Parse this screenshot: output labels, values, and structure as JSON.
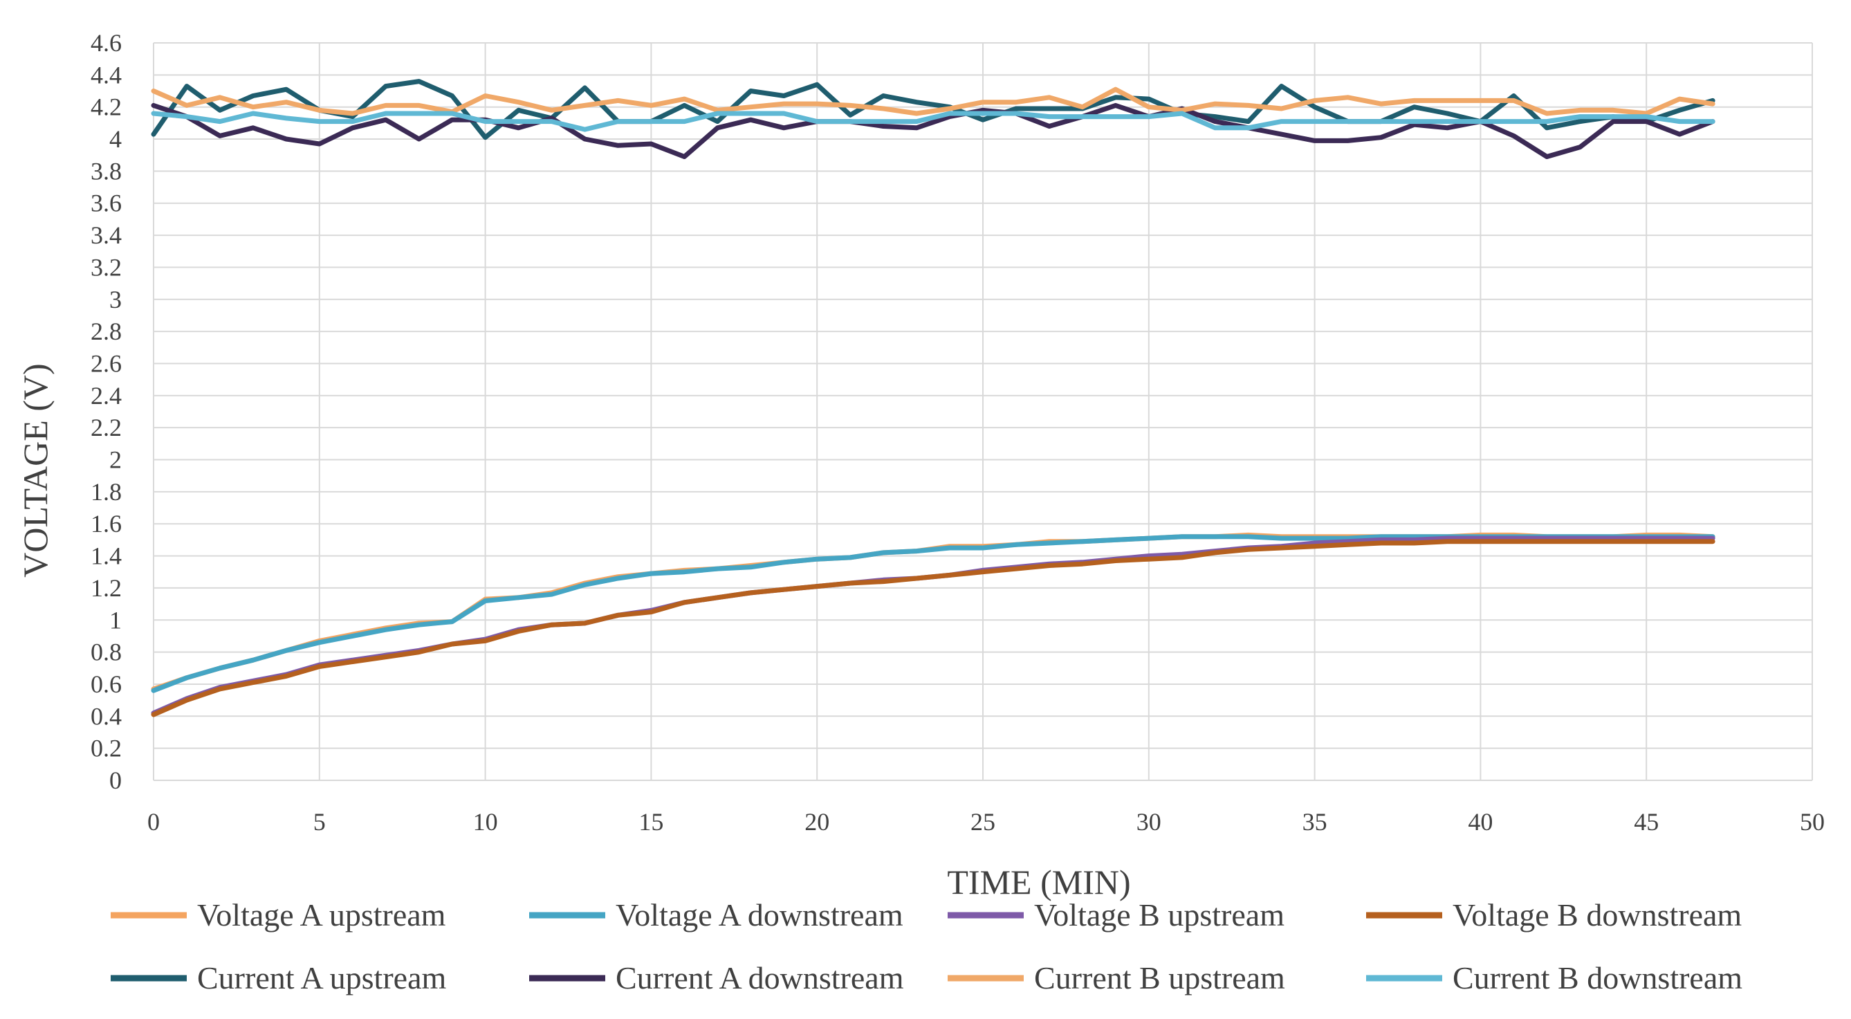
{
  "chart_data": {
    "type": "line",
    "title": "",
    "xlabel": "TIME (MIN)",
    "ylabel": "VOLTAGE (V)",
    "xlim": [
      0,
      50
    ],
    "ylim": [
      0,
      4.6
    ],
    "xticks": [
      0,
      5,
      10,
      15,
      20,
      25,
      30,
      35,
      40,
      45,
      50
    ],
    "yticks": [
      0,
      0.2,
      0.4,
      0.6,
      0.8,
      1,
      1.2,
      1.4,
      1.6,
      1.8,
      2,
      2.2,
      2.4,
      2.6,
      2.8,
      3,
      3.2,
      3.4,
      3.6,
      3.8,
      4,
      4.2,
      4.4,
      4.6
    ],
    "ytick_labels": [
      "0",
      "0.2",
      "0.4",
      "0.6",
      "0.8",
      "1",
      "1.2",
      "1.4",
      "1.6",
      "1.8",
      "2",
      "2.2",
      "2.4",
      "2.6",
      "2.8",
      "3",
      "3.2",
      "3.4",
      "3.6",
      "3.8",
      "4",
      "4.2",
      "4.4",
      "4.6"
    ],
    "grid": true,
    "legend_position": "bottom",
    "x": [
      0,
      1,
      2,
      3,
      4,
      5,
      6,
      7,
      8,
      9,
      10,
      11,
      12,
      13,
      14,
      15,
      16,
      17,
      18,
      19,
      20,
      21,
      22,
      23,
      24,
      25,
      26,
      27,
      28,
      29,
      30,
      31,
      32,
      33,
      34,
      35,
      36,
      37,
      38,
      39,
      40,
      41,
      42,
      43,
      44,
      45,
      46,
      47
    ],
    "series": [
      {
        "name": "Voltage A upstream",
        "color": "#F4A460",
        "values": [
          0.57,
          0.64,
          0.7,
          0.75,
          0.81,
          0.87,
          0.91,
          0.95,
          0.98,
          0.99,
          1.13,
          1.14,
          1.17,
          1.23,
          1.27,
          1.29,
          1.31,
          1.32,
          1.34,
          1.36,
          1.38,
          1.39,
          1.42,
          1.43,
          1.46,
          1.46,
          1.47,
          1.49,
          1.49,
          1.5,
          1.51,
          1.52,
          1.52,
          1.53,
          1.52,
          1.52,
          1.52,
          1.52,
          1.52,
          1.52,
          1.53,
          1.53,
          1.52,
          1.52,
          1.52,
          1.53,
          1.53,
          1.52
        ]
      },
      {
        "name": "Voltage A downstream",
        "color": "#45A5C4",
        "values": [
          0.56,
          0.64,
          0.7,
          0.75,
          0.81,
          0.86,
          0.9,
          0.94,
          0.97,
          0.99,
          1.12,
          1.14,
          1.16,
          1.22,
          1.26,
          1.29,
          1.3,
          1.32,
          1.33,
          1.36,
          1.38,
          1.39,
          1.42,
          1.43,
          1.45,
          1.45,
          1.47,
          1.48,
          1.49,
          1.5,
          1.51,
          1.52,
          1.52,
          1.52,
          1.51,
          1.51,
          1.51,
          1.52,
          1.52,
          1.52,
          1.52,
          1.52,
          1.52,
          1.52,
          1.52,
          1.52,
          1.52,
          1.52
        ]
      },
      {
        "name": "Voltage B upstream",
        "color": "#7E5AA8",
        "values": [
          0.42,
          0.51,
          0.58,
          0.62,
          0.66,
          0.72,
          0.75,
          0.78,
          0.81,
          0.85,
          0.88,
          0.94,
          0.97,
          0.98,
          1.03,
          1.06,
          1.11,
          1.14,
          1.17,
          1.19,
          1.21,
          1.23,
          1.25,
          1.26,
          1.28,
          1.31,
          1.33,
          1.35,
          1.36,
          1.38,
          1.4,
          1.41,
          1.43,
          1.45,
          1.46,
          1.48,
          1.49,
          1.5,
          1.5,
          1.51,
          1.51,
          1.51,
          1.51,
          1.51,
          1.51,
          1.51,
          1.51,
          1.51
        ]
      },
      {
        "name": "Voltage B downstream",
        "color": "#B5601E",
        "values": [
          0.41,
          0.5,
          0.57,
          0.61,
          0.65,
          0.71,
          0.74,
          0.77,
          0.8,
          0.85,
          0.87,
          0.93,
          0.97,
          0.98,
          1.03,
          1.05,
          1.11,
          1.14,
          1.17,
          1.19,
          1.21,
          1.23,
          1.24,
          1.26,
          1.28,
          1.3,
          1.32,
          1.34,
          1.35,
          1.37,
          1.38,
          1.39,
          1.42,
          1.44,
          1.45,
          1.46,
          1.47,
          1.48,
          1.48,
          1.49,
          1.49,
          1.49,
          1.49,
          1.49,
          1.49,
          1.49,
          1.49,
          1.49
        ]
      },
      {
        "name": "Current A upstream",
        "color": "#1F5D6E",
        "values": [
          4.03,
          4.33,
          4.18,
          4.27,
          4.31,
          4.18,
          4.14,
          4.33,
          4.36,
          4.27,
          4.01,
          4.18,
          4.13,
          4.32,
          4.11,
          4.11,
          4.21,
          4.11,
          4.3,
          4.27,
          4.34,
          4.15,
          4.27,
          4.23,
          4.2,
          4.12,
          4.19,
          4.19,
          4.19,
          4.26,
          4.25,
          4.16,
          4.14,
          4.11,
          4.33,
          4.2,
          4.11,
          4.11,
          4.2,
          4.16,
          4.11,
          4.27,
          4.07,
          4.11,
          4.14,
          4.11,
          4.18,
          4.24
        ]
      },
      {
        "name": "Current A downstream",
        "color": "#3B2A55",
        "values": [
          4.21,
          4.14,
          4.02,
          4.07,
          4.0,
          3.97,
          4.07,
          4.12,
          4.0,
          4.12,
          4.12,
          4.07,
          4.13,
          4.0,
          3.96,
          3.97,
          3.89,
          4.07,
          4.12,
          4.07,
          4.11,
          4.11,
          4.08,
          4.07,
          4.14,
          4.18,
          4.16,
          4.08,
          4.14,
          4.21,
          4.14,
          4.19,
          4.11,
          4.07,
          4.03,
          3.99,
          3.99,
          4.01,
          4.09,
          4.07,
          4.11,
          4.02,
          3.89,
          3.95,
          4.11,
          4.11,
          4.03,
          4.11
        ]
      },
      {
        "name": "Current B upstream",
        "color": "#F0A868",
        "values": [
          4.3,
          4.21,
          4.26,
          4.2,
          4.23,
          4.18,
          4.16,
          4.21,
          4.21,
          4.17,
          4.27,
          4.23,
          4.18,
          4.21,
          4.24,
          4.21,
          4.25,
          4.18,
          4.2,
          4.22,
          4.22,
          4.21,
          4.19,
          4.16,
          4.19,
          4.23,
          4.23,
          4.26,
          4.2,
          4.31,
          4.2,
          4.18,
          4.22,
          4.21,
          4.19,
          4.24,
          4.26,
          4.22,
          4.24,
          4.24,
          4.24,
          4.24,
          4.16,
          4.18,
          4.18,
          4.16,
          4.25,
          4.22
        ]
      },
      {
        "name": "Current B downstream",
        "color": "#5FB8D4",
        "values": [
          4.16,
          4.14,
          4.11,
          4.16,
          4.13,
          4.11,
          4.11,
          4.16,
          4.16,
          4.16,
          4.11,
          4.11,
          4.11,
          4.06,
          4.11,
          4.11,
          4.11,
          4.16,
          4.16,
          4.16,
          4.11,
          4.11,
          4.11,
          4.11,
          4.16,
          4.16,
          4.16,
          4.14,
          4.14,
          4.14,
          4.14,
          4.16,
          4.07,
          4.07,
          4.11,
          4.11,
          4.11,
          4.11,
          4.11,
          4.11,
          4.11,
          4.11,
          4.11,
          4.14,
          4.14,
          4.14,
          4.11,
          4.11
        ]
      }
    ]
  }
}
